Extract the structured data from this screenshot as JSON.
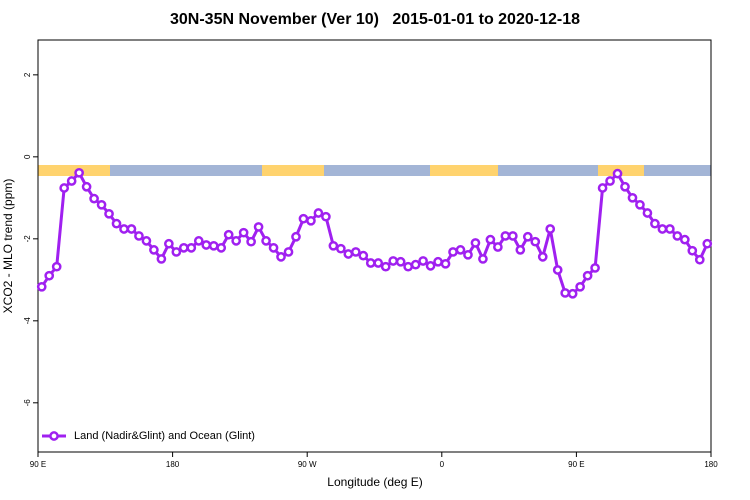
{
  "chart_data": {
    "type": "line",
    "title": "30N-35N November (Ver 10)   2015-01-01 to 2020-12-18",
    "xlabel": "Longitude (deg E)",
    "ylabel": "XCO2 - MLO trend (ppm)",
    "xlim": [
      90,
      540
    ],
    "xticks": [
      {
        "value": 90,
        "label": "90 E"
      },
      180,
      {
        "value": 270,
        "label": "90 W"
      },
      {
        "value": 360,
        "label": "0"
      },
      {
        "value": 450,
        "label": "90 E"
      },
      {
        "value": 540,
        "label": "180"
      }
    ],
    "ylim": [
      -7.2,
      2.85
    ],
    "yticks": [
      -6,
      -4,
      -2,
      0,
      2
    ],
    "legend": "bottom-left",
    "x": [
      92.5,
      97.5,
      102.5,
      107.5,
      112.5,
      117.5,
      122.5,
      127.5,
      132.5,
      137.5,
      142.5,
      147.5,
      152.5,
      157.5,
      162.5,
      167.5,
      172.5,
      177.5,
      182.5,
      187.5,
      192.5,
      197.5,
      202.5,
      207.5,
      212.5,
      217.5,
      222.5,
      227.5,
      232.5,
      237.5,
      242.5,
      247.5,
      252.5,
      257.5,
      262.5,
      267.5,
      272.5,
      277.5,
      282.5,
      287.5,
      292.5,
      297.5,
      302.5,
      307.5,
      312.5,
      317.5,
      322.5,
      327.5,
      332.5,
      337.5,
      342.5,
      347.5,
      352.5,
      357.5,
      362.5,
      367.5,
      372.5,
      377.5,
      382.5,
      387.5,
      392.5,
      397.5,
      402.5,
      407.5,
      412.5,
      417.5,
      422.5,
      427.5,
      432.5,
      437.5,
      442.5,
      447.5,
      452.5,
      457.5,
      462.5,
      467.5,
      472.5,
      477.5,
      482.5,
      487.5,
      492.5,
      497.5,
      502.5,
      507.5,
      512.5,
      517.5,
      522.5,
      527.5,
      532.5,
      537.5
    ],
    "series": [
      {
        "name": "Land (Nadir&Glint) and Ocean (Glint)",
        "color": "#a020f0",
        "values": [
          -3.17,
          -2.9,
          -2.68,
          -0.76,
          -0.59,
          -0.39,
          -0.73,
          -1.02,
          -1.17,
          -1.39,
          -1.63,
          -1.76,
          -1.76,
          -1.93,
          -2.05,
          -2.27,
          -2.49,
          -2.12,
          -2.32,
          -2.22,
          -2.22,
          -2.05,
          -2.15,
          -2.17,
          -2.22,
          -1.9,
          -2.05,
          -1.85,
          -2.07,
          -1.71,
          -2.05,
          -2.22,
          -2.44,
          -2.32,
          -1.95,
          -1.51,
          -1.56,
          -1.37,
          -1.46,
          -2.17,
          -2.24,
          -2.37,
          -2.32,
          -2.41,
          -2.59,
          -2.59,
          -2.68,
          -2.54,
          -2.56,
          -2.68,
          -2.63,
          -2.54,
          -2.66,
          -2.56,
          -2.61,
          -2.32,
          -2.27,
          -2.39,
          -2.1,
          -2.49,
          -2.02,
          -2.2,
          -1.93,
          -1.93,
          -2.27,
          -1.95,
          -2.07,
          -2.44,
          -1.76,
          -2.76,
          -3.32,
          -3.34,
          -3.17,
          -2.9,
          -2.71,
          -0.76,
          -0.59,
          -0.41,
          -0.73,
          -1.0,
          -1.17,
          -1.37,
          -1.63,
          -1.76,
          -1.76,
          -1.93,
          -2.02,
          -2.29,
          -2.51,
          -2.12
        ]
      }
    ]
  }
}
